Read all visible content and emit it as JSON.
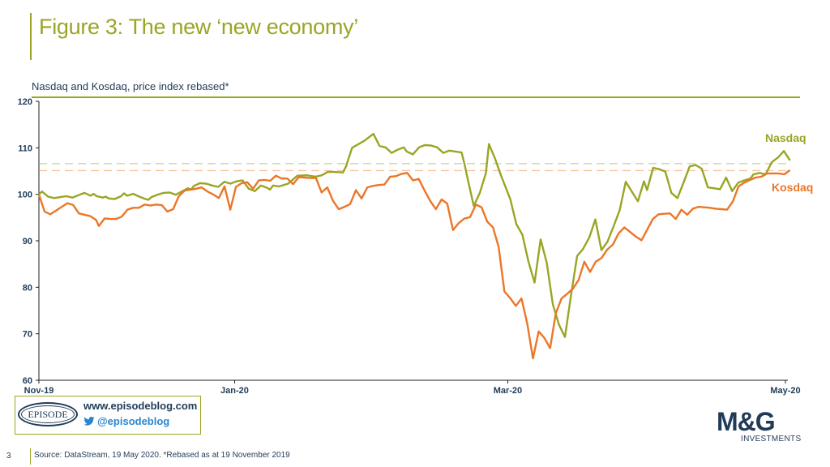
{
  "title": "Figure 3: The new ‘new economy’",
  "subtitle": "Nasdaq and Kosdaq, price index rebased*",
  "badge": {
    "logo_text": "EPISODE",
    "website": "www.episodeblog.com",
    "twitter": "@episodeblog"
  },
  "footer": {
    "page_number": "3",
    "source": "Source: DataStream, 19 May 2020. *Rebased as at 19 November  2019"
  },
  "logo": {
    "main": "M&G",
    "sub": "INVESTMENTS"
  },
  "colors": {
    "nasdaq": "#9aa524",
    "kosdaq": "#ec7627",
    "text": "#1f3b57",
    "accent": "#9aa524"
  },
  "chart_data": {
    "type": "line",
    "ylim": [
      60,
      120
    ],
    "yticks": [
      60,
      70,
      80,
      90,
      100,
      110,
      120
    ],
    "xticks": [
      {
        "label": "Nov-19",
        "day": 0
      },
      {
        "label": "Jan-20",
        "day": 43
      },
      {
        "label": "Mar-20",
        "day": 103
      },
      {
        "label": "May-20",
        "day": 164
      }
    ],
    "x_range_days": [
      0,
      167
    ],
    "reference_lines": [
      {
        "series": "Nasdaq",
        "value": 106.6
      },
      {
        "series": "Kosdaq",
        "value": 105.1
      }
    ],
    "series": [
      {
        "name": "Nasdaq",
        "label": "Nasdaq",
        "color": "#9aa524",
        "points": [
          [
            0,
            100
          ],
          [
            1,
            100.6
          ],
          [
            3,
            99.5
          ],
          [
            5,
            99.2
          ],
          [
            7,
            99.4
          ],
          [
            9,
            99.6
          ],
          [
            11,
            99.3
          ],
          [
            13,
            99.8
          ],
          [
            15,
            100.3
          ],
          [
            17,
            99.7
          ],
          [
            18,
            100.1
          ],
          [
            19,
            99.6
          ],
          [
            21,
            99.3
          ],
          [
            22,
            99.5
          ],
          [
            23,
            99.1
          ],
          [
            25,
            99.0
          ],
          [
            27,
            99.6
          ],
          [
            28,
            100.2
          ],
          [
            29,
            99.7
          ],
          [
            31,
            100.1
          ],
          [
            33,
            99.5
          ],
          [
            35,
            99.0
          ],
          [
            36,
            98.8
          ],
          [
            37,
            99.4
          ],
          [
            39,
            99.9
          ],
          [
            41,
            100.3
          ],
          [
            43,
            100.4
          ],
          [
            45,
            99.9
          ],
          [
            47,
            100.6
          ],
          [
            49,
            101.3
          ],
          [
            50,
            101.0
          ],
          [
            51,
            101.8
          ],
          [
            53,
            102.4
          ],
          [
            55,
            102.3
          ],
          [
            57,
            101.9
          ],
          [
            59,
            101.6
          ],
          [
            61,
            102.7
          ],
          [
            63,
            102.3
          ],
          [
            65,
            102.8
          ],
          [
            67,
            103.0
          ],
          [
            69,
            101.2
          ],
          [
            71,
            100.7
          ],
          [
            73,
            101.9
          ],
          [
            75,
            101.4
          ],
          [
            76,
            101.0
          ],
          [
            77,
            101.9
          ],
          [
            79,
            101.7
          ],
          [
            81,
            102.1
          ],
          [
            82,
            102.3
          ],
          [
            85,
            104.0
          ],
          [
            88,
            104.1
          ],
          [
            91,
            103.8
          ],
          [
            93,
            104.1
          ],
          [
            95,
            104.8
          ],
          [
            97,
            104.8
          ],
          [
            100,
            104.7
          ],
          [
            101,
            106.0
          ],
          [
            103,
            110.0
          ],
          [
            107,
            111.5
          ],
          [
            110,
            113.0
          ],
          [
            112,
            110.4
          ],
          [
            114,
            110.1
          ],
          [
            116,
            108.9
          ],
          [
            118,
            109.6
          ],
          [
            120,
            110.1
          ],
          [
            121,
            109.2
          ],
          [
            123,
            108.6
          ],
          [
            125,
            110.1
          ],
          [
            127,
            110.6
          ],
          [
            129,
            110.5
          ],
          [
            131,
            110.1
          ],
          [
            133,
            108.9
          ],
          [
            135,
            109.4
          ],
          [
            137,
            109.2
          ],
          [
            139,
            109.0
          ],
          [
            140,
            106.4
          ],
          [
            141,
            103.3
          ],
          [
            143,
            97.5
          ],
          [
            145,
            100.3
          ],
          [
            147,
            104.6
          ],
          [
            148,
            110.8
          ],
          [
            150,
            107.7
          ],
          [
            152,
            104.0
          ],
          [
            155,
            99.0
          ],
          [
            157,
            93.6
          ],
          [
            159,
            91.3
          ],
          [
            161,
            85.5
          ],
          [
            163,
            81.0
          ],
          [
            165,
            90.3
          ],
          [
            167,
            85.3
          ],
          [
            169,
            76.4
          ],
          [
            171,
            72.0
          ],
          [
            173,
            69.3
          ],
          [
            175,
            78.3
          ],
          [
            177,
            86.7
          ],
          [
            179,
            88.3
          ],
          [
            181,
            90.7
          ],
          [
            183,
            94.6
          ],
          [
            185,
            88.0
          ],
          [
            187,
            89.8
          ],
          [
            189,
            93.1
          ],
          [
            191,
            96.6
          ],
          [
            193,
            102.7
          ],
          [
            195,
            100.6
          ],
          [
            197,
            98.5
          ],
          [
            199,
            102.8
          ],
          [
            200,
            100.9
          ],
          [
            202,
            105.7
          ],
          [
            204,
            105.4
          ],
          [
            206,
            104.9
          ],
          [
            208,
            100.3
          ],
          [
            210,
            99.2
          ],
          [
            212,
            102.5
          ],
          [
            214,
            106.0
          ],
          [
            216,
            106.3
          ],
          [
            218,
            105.5
          ],
          [
            220,
            101.5
          ],
          [
            222,
            101.3
          ],
          [
            224,
            101.1
          ],
          [
            226,
            103.6
          ],
          [
            228,
            100.7
          ],
          [
            230,
            102.5
          ],
          [
            232,
            103.0
          ],
          [
            234,
            103.4
          ],
          [
            235,
            104.3
          ],
          [
            237,
            104.6
          ],
          [
            239,
            104.3
          ],
          [
            241,
            106.9
          ],
          [
            243,
            107.9
          ],
          [
            245,
            109.3
          ],
          [
            247,
            107.3
          ]
        ]
      },
      {
        "name": "Kosdaq",
        "label": "Kosdaq",
        "color": "#ec7627",
        "points": [
          [
            0,
            100
          ],
          [
            2,
            96.3
          ],
          [
            4,
            95.7
          ],
          [
            6,
            96.5
          ],
          [
            8,
            97.3
          ],
          [
            10,
            98.1
          ],
          [
            12,
            97.7
          ],
          [
            14,
            95.9
          ],
          [
            16,
            95.6
          ],
          [
            18,
            95.3
          ],
          [
            20,
            94.5
          ],
          [
            21,
            93.2
          ],
          [
            23,
            94.8
          ],
          [
            25,
            94.7
          ],
          [
            27,
            94.7
          ],
          [
            29,
            95.2
          ],
          [
            31,
            96.7
          ],
          [
            33,
            97.1
          ],
          [
            35,
            97.1
          ],
          [
            37,
            97.8
          ],
          [
            39,
            97.6
          ],
          [
            41,
            97.8
          ],
          [
            43,
            97.7
          ],
          [
            45,
            96.3
          ],
          [
            47,
            96.8
          ],
          [
            49,
            99.6
          ],
          [
            51,
            100.8
          ],
          [
            53,
            101.0
          ],
          [
            55,
            101.2
          ],
          [
            57,
            101.5
          ],
          [
            59,
            100.6
          ],
          [
            61,
            100.0
          ],
          [
            63,
            99.2
          ],
          [
            65,
            101.7
          ],
          [
            67,
            96.7
          ],
          [
            69,
            101.6
          ],
          [
            71,
            102.4
          ],
          [
            73,
            102.6
          ],
          [
            75,
            101.2
          ],
          [
            77,
            103.0
          ],
          [
            79,
            103.1
          ],
          [
            81,
            102.9
          ],
          [
            83,
            104.0
          ],
          [
            85,
            103.4
          ],
          [
            87,
            103.4
          ],
          [
            89,
            102.2
          ],
          [
            91,
            103.7
          ],
          [
            93,
            103.6
          ],
          [
            95,
            103.5
          ],
          [
            97,
            103.5
          ],
          [
            99,
            100.4
          ],
          [
            101,
            101.5
          ],
          [
            103,
            98.6
          ],
          [
            105,
            96.8
          ],
          [
            107,
            97.3
          ],
          [
            109,
            97.9
          ],
          [
            111,
            100.9
          ],
          [
            113,
            99.1
          ],
          [
            115,
            101.5
          ],
          [
            117,
            101.8
          ],
          [
            119,
            102.0
          ],
          [
            121,
            102.1
          ],
          [
            123,
            103.8
          ],
          [
            125,
            103.9
          ],
          [
            127,
            104.4
          ],
          [
            129,
            104.6
          ],
          [
            131,
            103.0
          ],
          [
            133,
            103.3
          ],
          [
            135,
            100.9
          ],
          [
            137,
            98.6
          ],
          [
            139,
            96.8
          ],
          [
            141,
            98.9
          ],
          [
            143,
            98.0
          ],
          [
            145,
            92.3
          ],
          [
            147,
            93.8
          ],
          [
            149,
            94.8
          ],
          [
            151,
            95.1
          ],
          [
            153,
            97.8
          ],
          [
            155,
            97.2
          ],
          [
            157,
            94.1
          ],
          [
            159,
            92.9
          ],
          [
            161,
            88.7
          ],
          [
            163,
            79.1
          ],
          [
            165,
            77.7
          ],
          [
            167,
            76.0
          ],
          [
            169,
            77.6
          ],
          [
            171,
            72.2
          ],
          [
            173,
            64.7
          ],
          [
            175,
            70.5
          ],
          [
            177,
            69.1
          ],
          [
            179,
            66.9
          ],
          [
            181,
            74.4
          ],
          [
            183,
            77.6
          ],
          [
            185,
            78.6
          ],
          [
            187,
            79.7
          ],
          [
            189,
            81.6
          ],
          [
            191,
            85.5
          ],
          [
            193,
            83.3
          ],
          [
            195,
            85.5
          ],
          [
            197,
            86.3
          ],
          [
            199,
            88.1
          ],
          [
            201,
            89.2
          ],
          [
            203,
            91.6
          ],
          [
            205,
            92.9
          ],
          [
            207,
            91.9
          ],
          [
            209,
            90.9
          ],
          [
            211,
            90.1
          ],
          [
            213,
            92.4
          ],
          [
            215,
            94.7
          ],
          [
            217,
            95.7
          ],
          [
            219,
            95.8
          ],
          [
            221,
            95.9
          ],
          [
            223,
            94.7
          ],
          [
            225,
            96.7
          ],
          [
            227,
            95.6
          ],
          [
            229,
            96.9
          ],
          [
            231,
            97.3
          ],
          [
            233,
            97.2
          ],
          [
            235,
            97.1
          ],
          [
            237,
            96.9
          ],
          [
            239,
            96.8
          ],
          [
            241,
            96.7
          ],
          [
            243,
            98.5
          ],
          [
            245,
            101.7
          ],
          [
            247,
            102.5
          ],
          [
            249,
            103.1
          ],
          [
            251,
            103.6
          ],
          [
            253,
            103.8
          ],
          [
            255,
            104.5
          ],
          [
            257,
            104.5
          ],
          [
            259,
            104.5
          ],
          [
            261,
            104.3
          ],
          [
            263,
            105.2
          ]
        ]
      }
    ]
  }
}
